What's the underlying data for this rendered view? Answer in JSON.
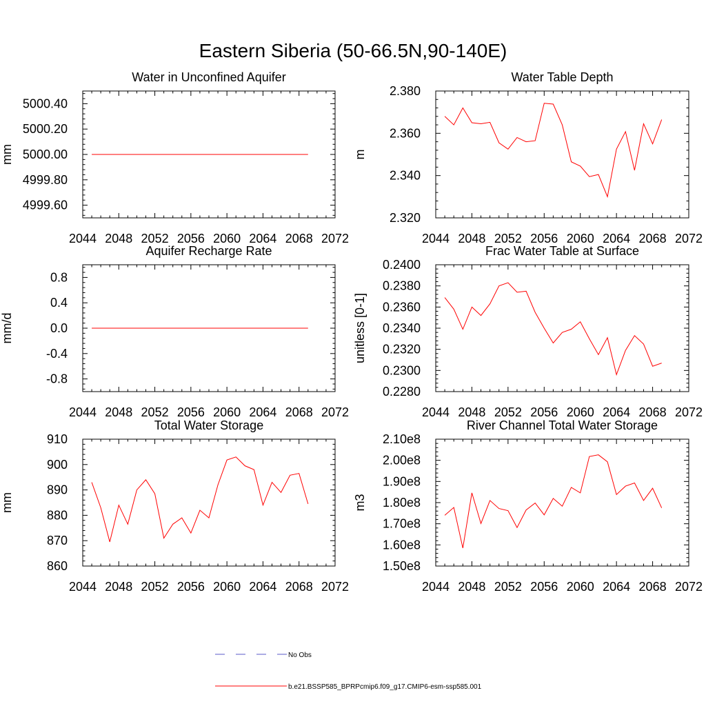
{
  "title": "Eastern Siberia (50-66.5N,90-140E)",
  "legend": {
    "entries": [
      {
        "label": "No Obs",
        "color": "#5a5ac8",
        "style": "dashed"
      },
      {
        "label": "b.e21.BSSP585_BPRPcmip6.f09_g17.CMIP6-esm-ssp585.001",
        "color": "#ff0000",
        "style": "solid"
      }
    ]
  },
  "chart_data": [
    {
      "type": "line",
      "title": "Water in Unconfined Aquifer",
      "ylabel": "mm",
      "xlim": [
        2044,
        2072
      ],
      "ylim": [
        4999.5,
        5000.5
      ],
      "xticks": [
        2044,
        2048,
        2052,
        2056,
        2060,
        2064,
        2068,
        2072
      ],
      "yticks": [
        4999.6,
        4999.8,
        5000.0,
        5000.2,
        5000.4
      ],
      "ytick_labels": [
        "4999.60",
        "4999.80",
        "5000.00",
        "5000.20",
        "5000.40"
      ],
      "x": [
        2045,
        2069
      ],
      "series": [
        {
          "name": "b.e21.BSSP585_BPRPcmip6.f09_g17.CMIP6-esm-ssp585.001",
          "color": "#ff0000",
          "values": [
            5000.0,
            5000.0
          ]
        }
      ]
    },
    {
      "type": "line",
      "title": "Water Table Depth",
      "ylabel": "m",
      "xlim": [
        2044,
        2072
      ],
      "ylim": [
        2.32,
        2.38
      ],
      "xticks": [
        2044,
        2048,
        2052,
        2056,
        2060,
        2064,
        2068,
        2072
      ],
      "yticks": [
        2.32,
        2.34,
        2.36,
        2.38
      ],
      "ytick_labels": [
        "2.320",
        "2.340",
        "2.360",
        "2.380"
      ],
      "x": [
        2045,
        2046,
        2047,
        2048,
        2049,
        2050,
        2051,
        2052,
        2053,
        2054,
        2055,
        2056,
        2057,
        2058,
        2059,
        2060,
        2061,
        2062,
        2063,
        2064,
        2065,
        2066,
        2067,
        2068,
        2069
      ],
      "series": [
        {
          "name": "b.e21.BSSP585_BPRPcmip6.f09_g17.CMIP6-esm-ssp585.001",
          "color": "#ff0000",
          "values": [
            2.368,
            2.364,
            2.372,
            2.365,
            2.3645,
            2.3652,
            2.3555,
            2.3525,
            2.358,
            2.356,
            2.3565,
            2.3742,
            2.3738,
            2.364,
            2.3465,
            2.3445,
            2.3395,
            2.3405,
            2.33,
            2.3525,
            2.3608,
            2.3425,
            2.3645,
            2.355,
            2.3665
          ]
        }
      ]
    },
    {
      "type": "line",
      "title": "Aquifer Recharge Rate",
      "ylabel": "mm/d",
      "xlim": [
        2044,
        2072
      ],
      "ylim": [
        -1.0,
        1.0
      ],
      "xticks": [
        2044,
        2048,
        2052,
        2056,
        2060,
        2064,
        2068,
        2072
      ],
      "yticks": [
        -0.8,
        -0.4,
        0.0,
        0.4,
        0.8
      ],
      "ytick_labels": [
        "-0.8",
        "-0.4",
        "0.0",
        "0.4",
        "0.8"
      ],
      "x": [
        2045,
        2069
      ],
      "series": [
        {
          "name": "b.e21.BSSP585_BPRPcmip6.f09_g17.CMIP6-esm-ssp585.001",
          "color": "#ff0000",
          "values": [
            0.0,
            0.0
          ]
        }
      ]
    },
    {
      "type": "line",
      "title": "Frac Water Table at Surface",
      "ylabel": "unitless [0-1]",
      "xlim": [
        2044,
        2072
      ],
      "ylim": [
        0.228,
        0.24
      ],
      "xticks": [
        2044,
        2048,
        2052,
        2056,
        2060,
        2064,
        2068,
        2072
      ],
      "yticks": [
        0.228,
        0.23,
        0.232,
        0.234,
        0.236,
        0.238,
        0.24
      ],
      "ytick_labels": [
        "0.2280",
        "0.2300",
        "0.2320",
        "0.2340",
        "0.2360",
        "0.2380",
        "0.2400"
      ],
      "x": [
        2045,
        2046,
        2047,
        2048,
        2049,
        2050,
        2051,
        2052,
        2053,
        2054,
        2055,
        2056,
        2057,
        2058,
        2059,
        2060,
        2061,
        2062,
        2063,
        2064,
        2065,
        2066,
        2067,
        2068,
        2069
      ],
      "series": [
        {
          "name": "b.e21.BSSP585_BPRPcmip6.f09_g17.CMIP6-esm-ssp585.001",
          "color": "#ff0000",
          "values": [
            0.2369,
            0.2358,
            0.2339,
            0.236,
            0.2352,
            0.2363,
            0.238,
            0.2383,
            0.2374,
            0.2375,
            0.2355,
            0.234,
            0.2326,
            0.2336,
            0.2339,
            0.2346,
            0.233,
            0.2315,
            0.2331,
            0.2296,
            0.2319,
            0.2333,
            0.2325,
            0.2304,
            0.2307
          ]
        }
      ]
    },
    {
      "type": "line",
      "title": "Total Water Storage",
      "ylabel": "mm",
      "xlim": [
        2044,
        2072
      ],
      "ylim": [
        860,
        910
      ],
      "xticks": [
        2044,
        2048,
        2052,
        2056,
        2060,
        2064,
        2068,
        2072
      ],
      "yticks": [
        860,
        870,
        880,
        890,
        900,
        910
      ],
      "ytick_labels": [
        "860",
        "870",
        "880",
        "890",
        "900",
        "910"
      ],
      "x": [
        2045,
        2046,
        2047,
        2048,
        2049,
        2050,
        2051,
        2052,
        2053,
        2054,
        2055,
        2056,
        2057,
        2058,
        2059,
        2060,
        2061,
        2062,
        2063,
        2064,
        2065,
        2066,
        2067,
        2068,
        2069
      ],
      "series": [
        {
          "name": "b.e21.BSSP585_BPRPcmip6.f09_g17.CMIP6-esm-ssp585.001",
          "color": "#ff0000",
          "values": [
            893,
            883,
            869.5,
            884,
            876.5,
            890,
            894,
            888.5,
            871,
            876.5,
            879,
            873,
            882,
            879,
            892,
            901.8,
            903,
            899.5,
            898,
            884,
            893,
            889,
            895.8,
            896.5,
            884.5
          ]
        }
      ]
    },
    {
      "type": "line",
      "title": "River Channel Total Water Storage",
      "ylabel": "m3",
      "xlim": [
        2044,
        2072
      ],
      "ylim": [
        150000000,
        210000000
      ],
      "xticks": [
        2044,
        2048,
        2052,
        2056,
        2060,
        2064,
        2068,
        2072
      ],
      "yticks": [
        150000000,
        160000000,
        170000000,
        180000000,
        190000000,
        200000000,
        210000000
      ],
      "ytick_labels": [
        "1.50e8",
        "1.60e8",
        "1.70e8",
        "1.80e8",
        "1.90e8",
        "2.00e8",
        "2.10e8"
      ],
      "x": [
        2045,
        2046,
        2047,
        2048,
        2049,
        2050,
        2051,
        2052,
        2053,
        2054,
        2055,
        2056,
        2057,
        2058,
        2059,
        2060,
        2061,
        2062,
        2063,
        2064,
        2065,
        2066,
        2067,
        2068,
        2069
      ],
      "series": [
        {
          "name": "b.e21.BSSP585_BPRPcmip6.f09_g17.CMIP6-esm-ssp585.001",
          "color": "#ff0000",
          "values": [
            174000000,
            177700000,
            158500000,
            184600000,
            170100000,
            181000000,
            177200000,
            176200000,
            168200000,
            176500000,
            179800000,
            174200000,
            182000000,
            178300000,
            187200000,
            184600000,
            201800000,
            202600000,
            199300000,
            183800000,
            187800000,
            189300000,
            181000000,
            186800000,
            177500000
          ]
        }
      ]
    }
  ]
}
